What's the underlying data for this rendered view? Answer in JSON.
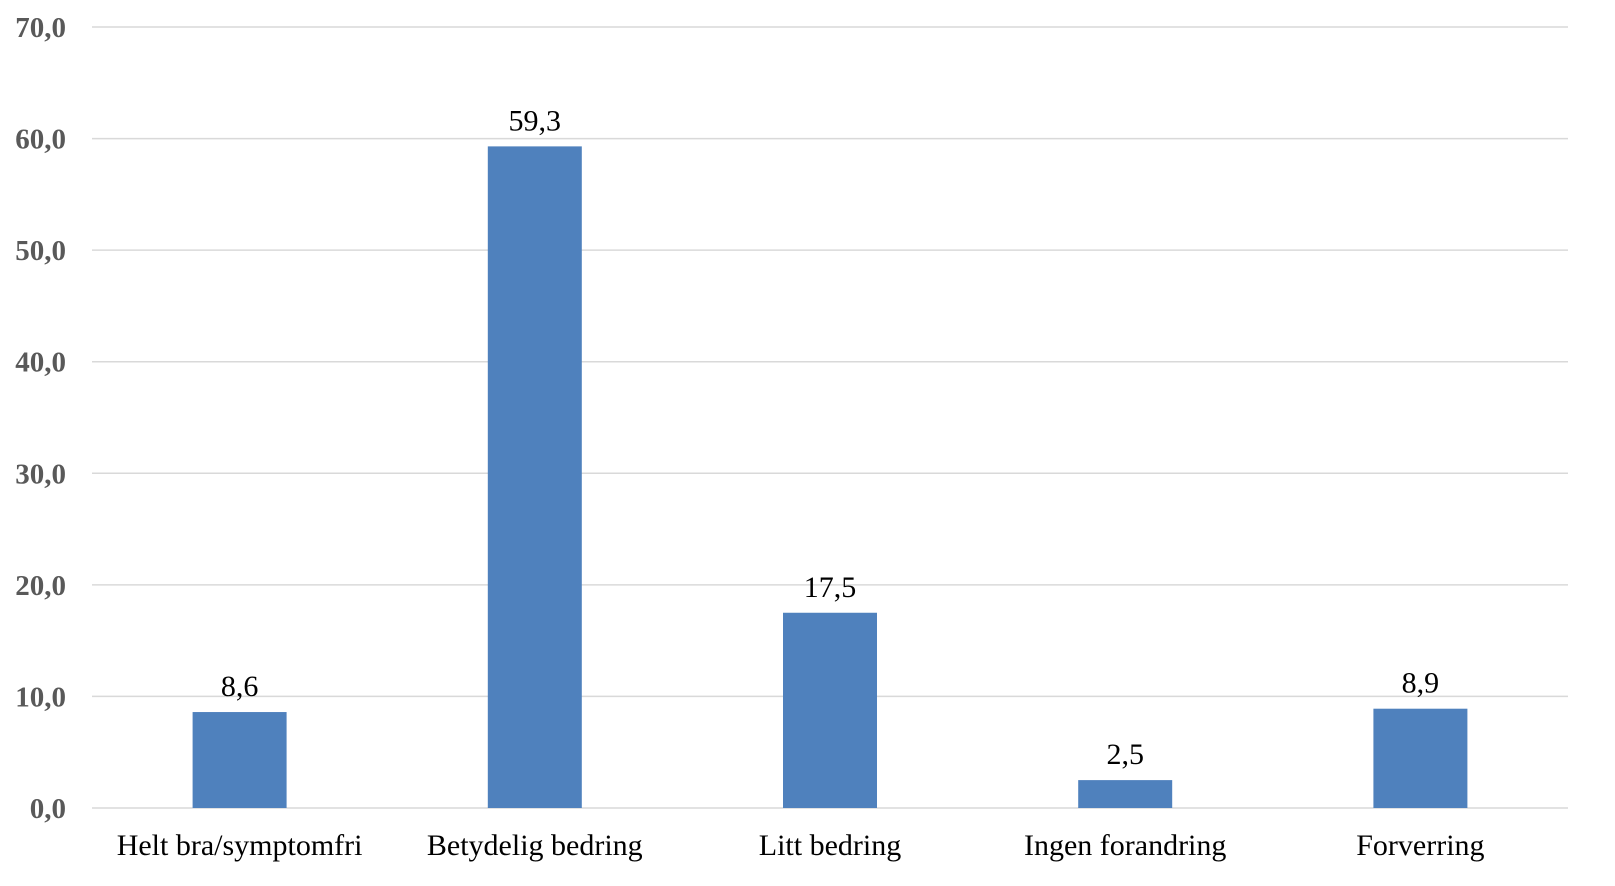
{
  "chart_data": {
    "type": "bar",
    "title": "",
    "xlabel": "",
    "ylabel": "",
    "categories": [
      "Helt bra/symptomfri",
      "Betydelig bedring",
      "Litt bedring",
      "Ingen forandring",
      "Forverring"
    ],
    "values": [
      8.6,
      59.3,
      17.5,
      2.5,
      8.9
    ],
    "data_labels": [
      "8,6",
      "59,3",
      "17,5",
      "2,5",
      "8,9"
    ],
    "ylim": [
      0,
      70
    ],
    "yticks": [
      0,
      10,
      20,
      30,
      40,
      50,
      60,
      70
    ],
    "ytick_labels": [
      "0,0",
      "10,0",
      "20,0",
      "30,0",
      "40,0",
      "50,0",
      "60,0",
      "70,0"
    ],
    "grid": true,
    "legend": "none",
    "bar_color": "#4f81bd"
  }
}
